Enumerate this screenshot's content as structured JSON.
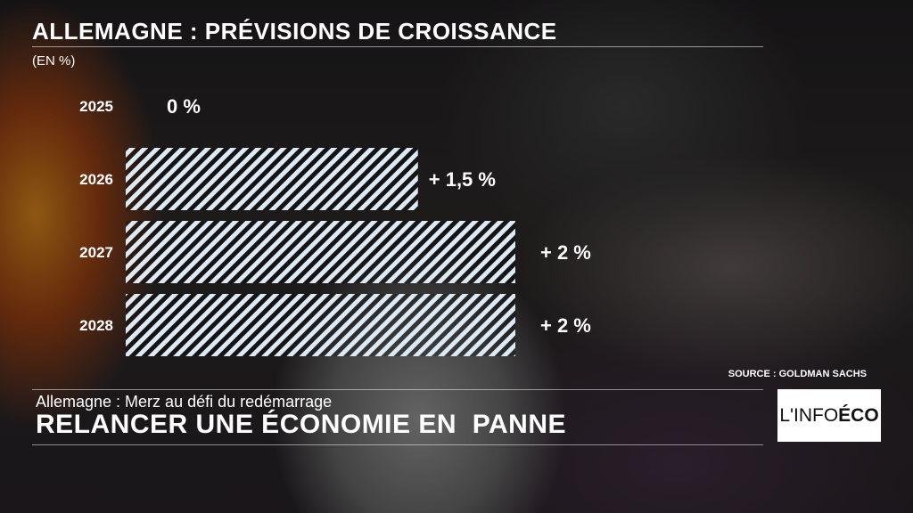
{
  "header": {
    "title": "ALLEMAGNE : PRÉVISIONS DE CROISSANCE",
    "unit": "(EN %)"
  },
  "chart_data": {
    "type": "bar",
    "orientation": "horizontal",
    "title": "ALLEMAGNE : PRÉVISIONS DE CROISSANCE",
    "ylabel": "(EN %)",
    "categories": [
      "2025",
      "2026",
      "2027",
      "2028"
    ],
    "values": [
      0,
      1.5,
      2,
      2
    ],
    "labels": [
      "0 %",
      "+ 1,5 %",
      "+ 2 %",
      "+ 2 %"
    ],
    "xlim": [
      0,
      2
    ],
    "bar_style": "hatched white/light-blue",
    "grid": false
  },
  "source": "SOURCE : GOLDMAN SACHS",
  "lower_third": {
    "subtitle": "Allemagne : Merz au défi du redémarrage",
    "headline": "RELANCER UNE ÉCONOMIE EN  PANNE"
  },
  "logo": {
    "prefix": "L'INFO ",
    "suffix": "ÉCO"
  },
  "colors": {
    "bar_hatch": "#dbeaf5",
    "text": "#ffffff"
  }
}
